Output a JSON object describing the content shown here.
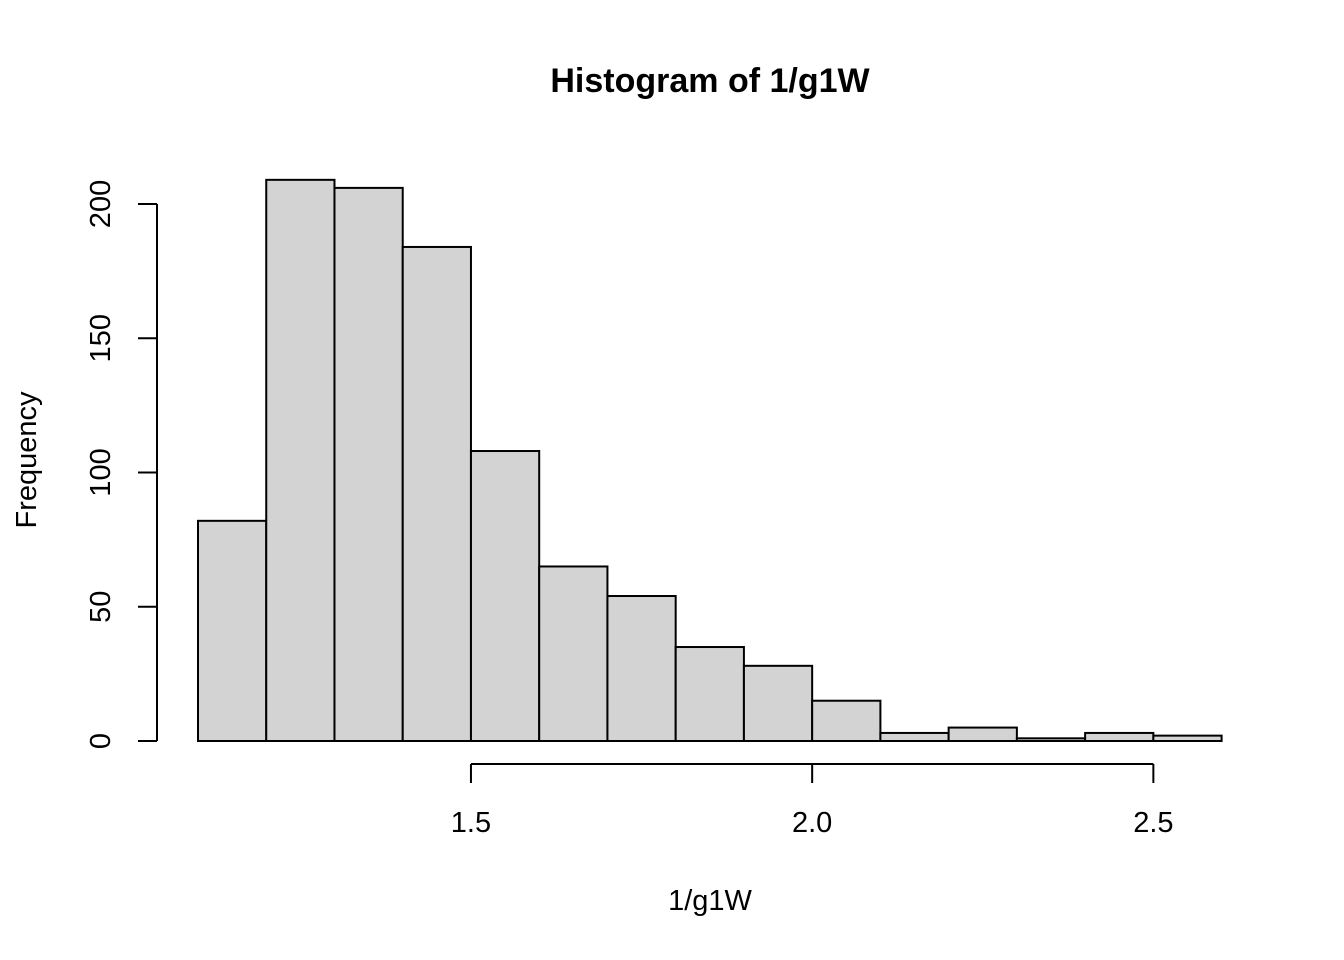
{
  "chart_data": {
    "type": "bar",
    "subtype": "histogram",
    "title": "Histogram of 1/g1W",
    "xlabel": "1/g1W",
    "ylabel": "Frequency",
    "bins": [
      {
        "x0": 1.1,
        "x1": 1.2,
        "count": 82
      },
      {
        "x0": 1.2,
        "x1": 1.3,
        "count": 209
      },
      {
        "x0": 1.3,
        "x1": 1.4,
        "count": 206
      },
      {
        "x0": 1.4,
        "x1": 1.5,
        "count": 184
      },
      {
        "x0": 1.5,
        "x1": 1.6,
        "count": 108
      },
      {
        "x0": 1.6,
        "x1": 1.7,
        "count": 65
      },
      {
        "x0": 1.7,
        "x1": 1.8,
        "count": 54
      },
      {
        "x0": 1.8,
        "x1": 1.9,
        "count": 35
      },
      {
        "x0": 1.9,
        "x1": 2.0,
        "count": 28
      },
      {
        "x0": 2.0,
        "x1": 2.1,
        "count": 15
      },
      {
        "x0": 2.1,
        "x1": 2.2,
        "count": 3
      },
      {
        "x0": 2.2,
        "x1": 2.3,
        "count": 5
      },
      {
        "x0": 2.3,
        "x1": 2.4,
        "count": 1
      },
      {
        "x0": 2.4,
        "x1": 2.5,
        "count": 3
      },
      {
        "x0": 2.5,
        "x1": 2.6,
        "count": 2
      }
    ],
    "x_ticks": [
      {
        "value": 1.5,
        "label": "1.5"
      },
      {
        "value": 2.0,
        "label": "2.0"
      },
      {
        "value": 2.5,
        "label": "2.5"
      }
    ],
    "y_ticks": [
      {
        "value": 0,
        "label": "0"
      },
      {
        "value": 50,
        "label": "50"
      },
      {
        "value": 100,
        "label": "100"
      },
      {
        "value": 150,
        "label": "150"
      },
      {
        "value": 200,
        "label": "200"
      }
    ],
    "grid": false,
    "colors": {
      "bar_fill": "#d3d3d3",
      "bar_stroke": "#000000"
    }
  }
}
